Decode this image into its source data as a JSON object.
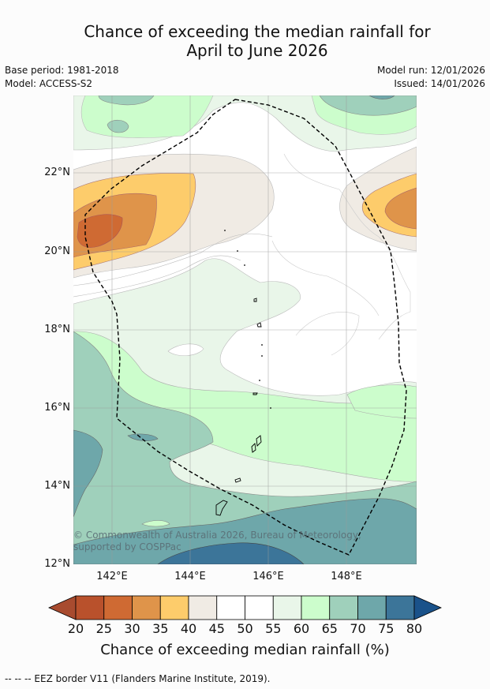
{
  "title": "Chance of exceeding the median rainfall for",
  "subtitle": "April to June 2026",
  "base_period": "Base period: 1981-2018",
  "model": "Model: ACCESS-S2",
  "model_run": "Model run: 12/01/2026",
  "issued": "Issued: 14/01/2026",
  "lat_labels": [
    "22°N",
    "20°N",
    "18°N",
    "16°N",
    "14°N",
    "12°N"
  ],
  "lon_labels": [
    "142°E",
    "144°E",
    "146°E",
    "148°E"
  ],
  "copyright": "© Commonwealth of Australia 2026, Bureau of Meteorology, supported by COSPPac",
  "colorbar": {
    "ticks": [
      "20",
      "25",
      "30",
      "35",
      "40",
      "45",
      "50",
      "55",
      "60",
      "65",
      "70",
      "75",
      "80"
    ],
    "colors": [
      "#a84b2f",
      "#b9512c",
      "#cf6a33",
      "#df944a",
      "#fdcc6b",
      "#f0ebe4",
      "#ffffff",
      "#ffffff",
      "#e9f6e9",
      "#ccfdcc",
      "#9fd0bb",
      "#6ea7aa",
      "#3c7599",
      "#1a528a"
    ],
    "label": "Chance of exceeding median rainfall (%)"
  },
  "legend_note": "--  --  -- EEZ border V11 (Flanders Marine Institute, 2019)."
}
